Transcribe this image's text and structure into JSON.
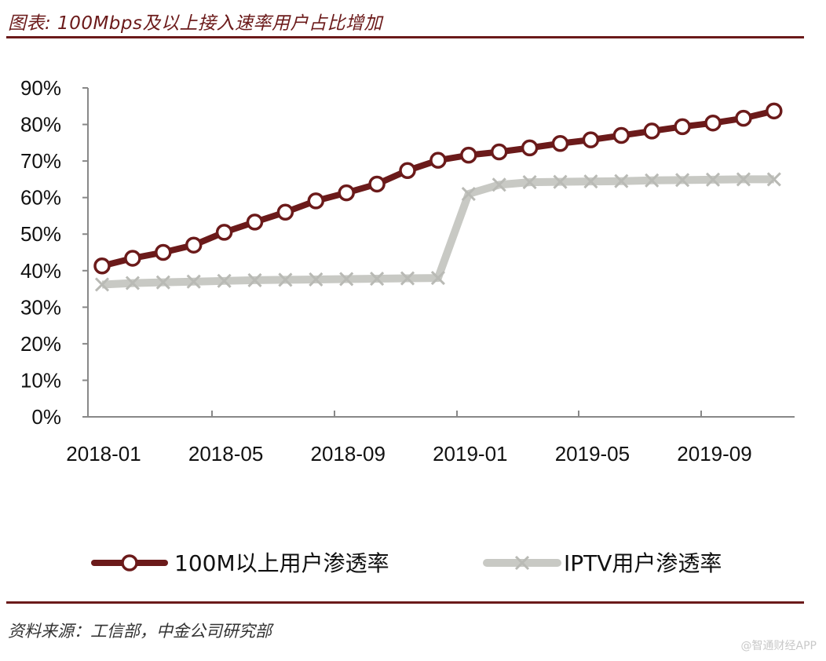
{
  "figure": {
    "title": "图表: 100Mbps及以上接入速率用户占比增加",
    "source": "资料来源：工信部，中金公司研究部",
    "watermark": "@智通财经APP"
  },
  "chart_data": {
    "type": "line",
    "title": "",
    "xlabel": "",
    "ylabel": "",
    "ylim": [
      0,
      90
    ],
    "y_ticks": [
      "0%",
      "10%",
      "20%",
      "30%",
      "40%",
      "50%",
      "60%",
      "70%",
      "80%",
      "90%"
    ],
    "x_tick_labels": [
      "2018-01",
      "2018-05",
      "2018-09",
      "2019-01",
      "2019-05",
      "2019-09"
    ],
    "grid": false,
    "legend_position": "bottom",
    "categories": [
      "2018-01",
      "2018-02",
      "2018-03",
      "2018-04",
      "2018-05",
      "2018-06",
      "2018-07",
      "2018-08",
      "2018-09",
      "2018-10",
      "2018-11",
      "2018-12",
      "2019-01",
      "2019-02",
      "2019-03",
      "2019-04",
      "2019-05",
      "2019-06",
      "2019-07",
      "2019-08",
      "2019-09",
      "2019-10",
      "2019-11"
    ],
    "series": [
      {
        "name": "100M以上用户渗透率",
        "color": "#6b1a1a",
        "marker": "circle",
        "values": [
          41.3,
          43.4,
          45.0,
          47.0,
          50.5,
          53.3,
          56.0,
          59.1,
          61.3,
          63.7,
          67.4,
          70.2,
          71.6,
          72.5,
          73.6,
          74.8,
          75.8,
          77.0,
          78.2,
          79.4,
          80.4,
          81.7,
          83.7
        ]
      },
      {
        "name": "IPTV用户渗透率",
        "color": "#c8c9c4",
        "marker": "x",
        "values": [
          36.2,
          36.6,
          36.8,
          37.0,
          37.2,
          37.4,
          37.5,
          37.6,
          37.7,
          37.8,
          37.9,
          38.0,
          61.0,
          63.5,
          64.2,
          64.3,
          64.4,
          64.5,
          64.7,
          64.8,
          64.9,
          65.0,
          65.0
        ]
      }
    ]
  }
}
